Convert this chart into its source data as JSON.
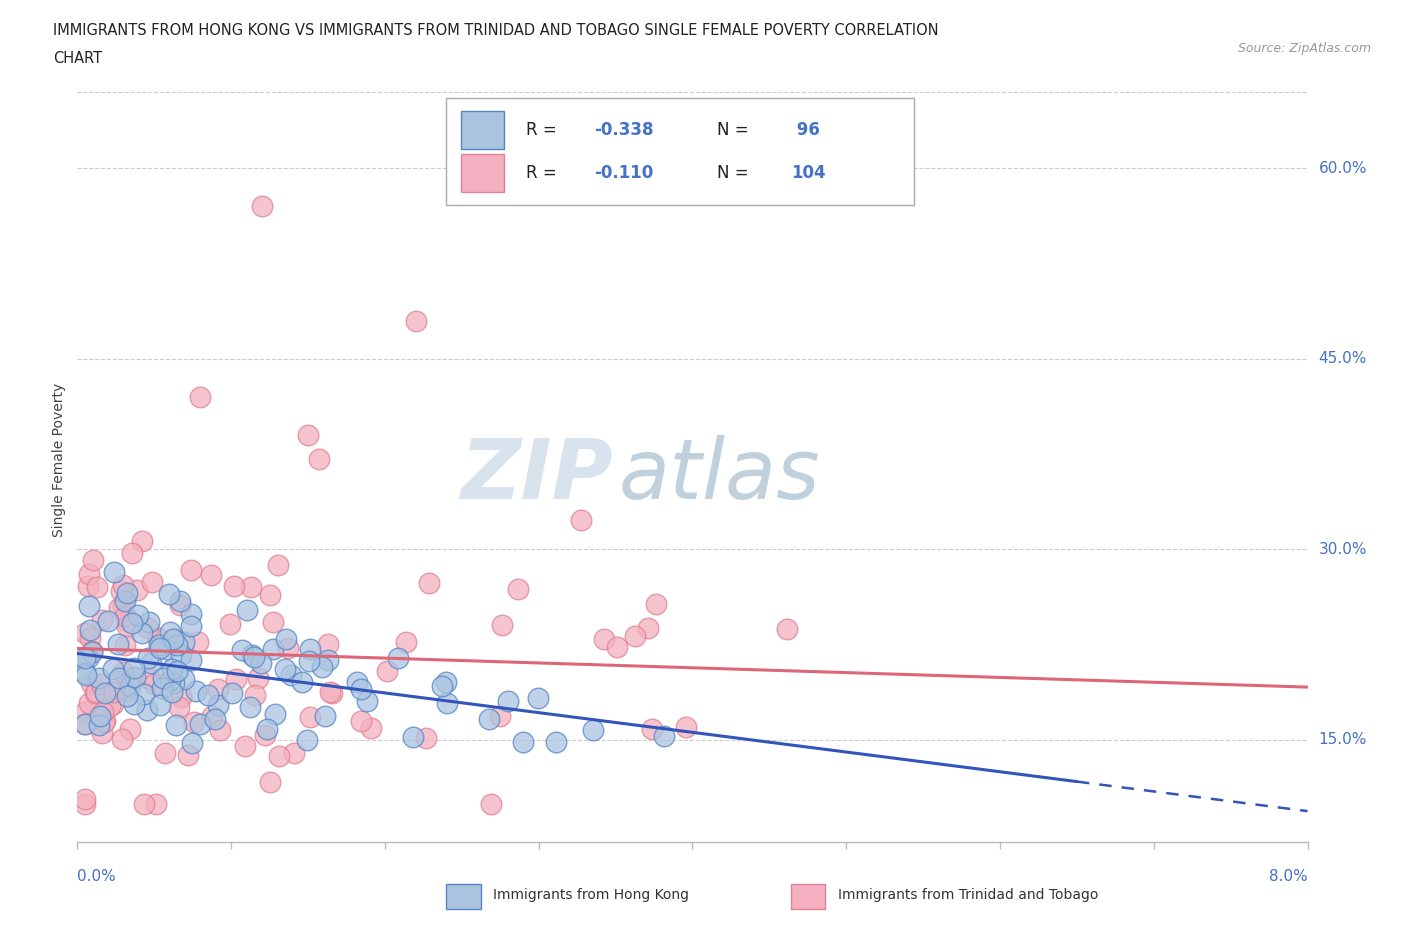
{
  "title_line1": "IMMIGRANTS FROM HONG KONG VS IMMIGRANTS FROM TRINIDAD AND TOBAGO SINGLE FEMALE POVERTY CORRELATION",
  "title_line2": "CHART",
  "source": "Source: ZipAtlas.com",
  "ylabel": "Single Female Poverty",
  "y_ticks": [
    0.15,
    0.3,
    0.45,
    0.6
  ],
  "y_tick_labels": [
    "15.0%",
    "30.0%",
    "45.0%",
    "60.0%"
  ],
  "x_min": 0.0,
  "x_max": 0.08,
  "y_min": 0.07,
  "y_max": 0.67,
  "hk_fill_color": "#aac4e0",
  "tt_fill_color": "#f4b0c0",
  "hk_edge_color": "#5585c8",
  "tt_edge_color": "#e08090",
  "hk_line_color": "#3355bb",
  "tt_line_color": "#dd6677",
  "tick_label_color": "#4472c4",
  "legend_label_hk": "Immigrants from Hong Kong",
  "legend_label_tt": "Immigrants from Trinidad and Tobago",
  "watermark_ZIP": "ZIP",
  "watermark_atlas": "atlas",
  "hk_trend_intercept": 0.218,
  "hk_trend_slope": -1.55,
  "hk_trend_solid_end": 0.065,
  "tt_trend_intercept": 0.222,
  "tt_trend_slope": -0.38
}
